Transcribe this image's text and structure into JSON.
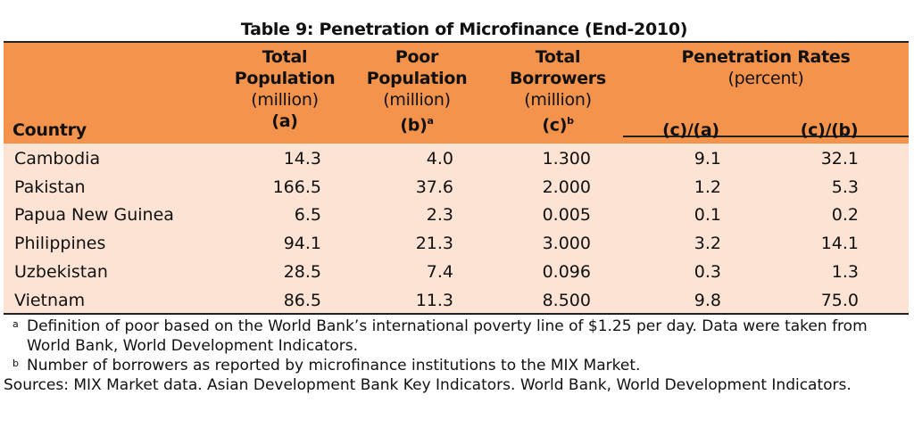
{
  "title": "Table 9: Penetration of Microfinance (End-2010)",
  "headers": {
    "country": "Country",
    "total_pop": {
      "l1": "Total",
      "l2": "Population",
      "unit": "(million)",
      "code": "(a)"
    },
    "poor_pop": {
      "l1": "Poor",
      "l2": "Population",
      "unit": "(million)",
      "code": "(b)",
      "sup": "a"
    },
    "borrowers": {
      "l1": "Total",
      "l2": "Borrowers",
      "unit": "(million)",
      "code": "(c)",
      "sup": "b"
    },
    "penetration": {
      "l1": "Penetration Rates",
      "unit": "(percent)",
      "ca": "(c)/(a)",
      "cb": "(c)/(b)"
    }
  },
  "rows": [
    [
      "Cambodia",
      "14.3",
      "4.0",
      "1.300",
      "9.1",
      "32.1"
    ],
    [
      "Pakistan",
      "166.5",
      "37.6",
      "2.000",
      "1.2",
      "5.3"
    ],
    [
      "Papua New Guinea",
      "6.5",
      "2.3",
      "0.005",
      "0.1",
      "0.2"
    ],
    [
      "Philippines",
      "94.1",
      "21.3",
      "3.000",
      "3.2",
      "14.1"
    ],
    [
      "Uzbekistan",
      "28.5",
      "7.4",
      "0.096",
      "0.3",
      "1.3"
    ],
    [
      "Vietnam",
      "86.5",
      "11.3",
      "8.500",
      "9.8",
      "75.0"
    ]
  ],
  "notes": {
    "a_mark": "a",
    "a": "Definition of poor based on the World Bank’s international poverty line of $1.25 per day. Data were taken from World Bank, World Development Indicators.",
    "b_mark": "b",
    "b": "Number of borrowers as reported by microfinance institutions to the MIX Market.",
    "sources": "Sources: MIX Market data. Asian Development Bank Key Indicators. World Bank, World Development Indicators."
  }
}
